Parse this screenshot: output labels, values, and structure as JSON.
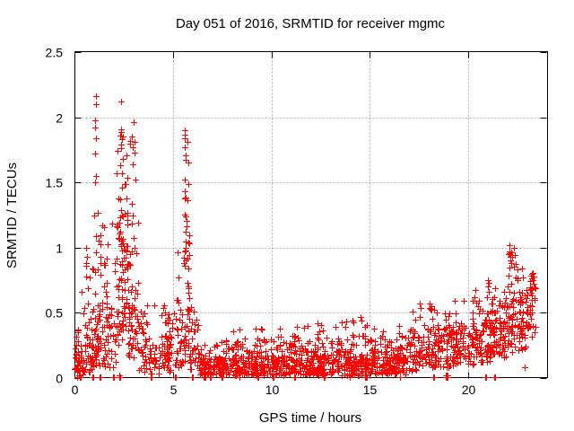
{
  "chart_data": {
    "type": "scatter",
    "title": "Day 051 of 2016, SRMTID for receiver mgmc",
    "xlabel": "GPS time / hours",
    "ylabel": "SRMTID / TECUs",
    "xlim": [
      0,
      24
    ],
    "ylim": [
      0,
      2.5
    ],
    "x_ticks": [
      0,
      5,
      10,
      15,
      20
    ],
    "y_ticks": [
      0,
      0.5,
      1,
      1.5,
      2,
      2.5
    ],
    "grid": true,
    "legend_position": "none",
    "marker": {
      "shape": "plus",
      "color": "#ff0000",
      "size": 7
    },
    "grid_color": "#b0b0b0",
    "axis_color": "#000000",
    "background": "#ffffff",
    "series_name": "SRMTID",
    "seed": 1337,
    "segments": [
      [
        0.0,
        0.45,
        48,
        [
          [
            0.72,
            0.02,
            0.22
          ],
          [
            0.2,
            0.22,
            0.4
          ],
          [
            0.08,
            0.4,
            0.78
          ]
        ]
      ],
      [
        0.45,
        0.95,
        52,
        [
          [
            0.55,
            0.04,
            0.3
          ],
          [
            0.3,
            0.3,
            0.6
          ],
          [
            0.15,
            0.6,
            1.0
          ]
        ]
      ],
      [
        0.95,
        1.25,
        38,
        [
          [
            0.5,
            0.08,
            0.45
          ],
          [
            0.35,
            0.45,
            0.9
          ],
          [
            0.15,
            0.9,
            1.38
          ]
        ]
      ],
      [
        1.25,
        1.65,
        42,
        [
          [
            0.5,
            0.08,
            0.4
          ],
          [
            0.35,
            0.4,
            0.85
          ],
          [
            0.15,
            0.85,
            1.22
          ]
        ]
      ],
      [
        1.65,
        2.1,
        32,
        [
          [
            0.65,
            0.08,
            0.45
          ],
          [
            0.27,
            0.45,
            0.85
          ],
          [
            0.08,
            0.85,
            1.2
          ]
        ]
      ],
      [
        2.1,
        2.7,
        92,
        [
          [
            0.35,
            0.25,
            0.6
          ],
          [
            0.4,
            0.6,
            1.1
          ],
          [
            0.2,
            1.1,
            1.55
          ],
          [
            0.05,
            1.55,
            1.95
          ]
        ]
      ],
      [
        2.7,
        3.25,
        62,
        [
          [
            0.45,
            0.15,
            0.55
          ],
          [
            0.35,
            0.55,
            1.0
          ],
          [
            0.15,
            1.0,
            1.38
          ],
          [
            0.05,
            1.38,
            1.85
          ]
        ]
      ],
      [
        3.25,
        3.8,
        34,
        [
          [
            0.68,
            0.04,
            0.3
          ],
          [
            0.26,
            0.3,
            0.5
          ],
          [
            0.06,
            0.5,
            0.62
          ]
        ]
      ],
      [
        3.8,
        4.5,
        34,
        [
          [
            0.74,
            0.03,
            0.25
          ],
          [
            0.21,
            0.25,
            0.45
          ],
          [
            0.05,
            0.45,
            0.56
          ]
        ]
      ],
      [
        4.5,
        5.2,
        56,
        [
          [
            0.6,
            0.05,
            0.28
          ],
          [
            0.3,
            0.28,
            0.45
          ],
          [
            0.1,
            0.45,
            0.58
          ]
        ]
      ],
      [
        5.2,
        5.55,
        30,
        [
          [
            0.6,
            0.08,
            0.35
          ],
          [
            0.3,
            0.35,
            0.7
          ],
          [
            0.1,
            0.7,
            1.1
          ]
        ]
      ],
      [
        5.55,
        5.85,
        48,
        [
          [
            0.3,
            0.1,
            0.4
          ],
          [
            0.3,
            0.4,
            0.8
          ],
          [
            0.25,
            0.8,
            1.25
          ],
          [
            0.15,
            1.25,
            1.9
          ]
        ]
      ],
      [
        5.85,
        6.35,
        30,
        [
          [
            0.6,
            0.05,
            0.3
          ],
          [
            0.3,
            0.3,
            0.55
          ],
          [
            0.1,
            0.55,
            0.78
          ]
        ]
      ],
      [
        6.35,
        7.0,
        55,
        [
          [
            0.85,
            0.02,
            0.15
          ],
          [
            0.15,
            0.15,
            0.28
          ]
        ]
      ],
      [
        7.0,
        8.0,
        82,
        [
          [
            0.8,
            0.02,
            0.16
          ],
          [
            0.18,
            0.16,
            0.3
          ],
          [
            0.02,
            0.3,
            0.38
          ]
        ]
      ],
      [
        8.0,
        9.0,
        82,
        [
          [
            0.78,
            0.02,
            0.17
          ],
          [
            0.2,
            0.17,
            0.3
          ],
          [
            0.02,
            0.3,
            0.4
          ]
        ]
      ],
      [
        9.0,
        10.0,
        84,
        [
          [
            0.75,
            0.02,
            0.18
          ],
          [
            0.22,
            0.18,
            0.32
          ],
          [
            0.03,
            0.32,
            0.42
          ]
        ]
      ],
      [
        10.0,
        11.0,
        84,
        [
          [
            0.78,
            0.02,
            0.17
          ],
          [
            0.2,
            0.17,
            0.3
          ],
          [
            0.02,
            0.3,
            0.38
          ]
        ]
      ],
      [
        11.0,
        12.0,
        84,
        [
          [
            0.75,
            0.02,
            0.18
          ],
          [
            0.22,
            0.18,
            0.33
          ],
          [
            0.03,
            0.33,
            0.42
          ]
        ]
      ],
      [
        12.0,
        13.0,
        84,
        [
          [
            0.75,
            0.02,
            0.18
          ],
          [
            0.22,
            0.18,
            0.3
          ],
          [
            0.03,
            0.3,
            0.42
          ]
        ]
      ],
      [
        13.0,
        14.0,
        84,
        [
          [
            0.72,
            0.02,
            0.18
          ],
          [
            0.24,
            0.18,
            0.33
          ],
          [
            0.04,
            0.33,
            0.44
          ]
        ]
      ],
      [
        14.0,
        15.0,
        84,
        [
          [
            0.72,
            0.02,
            0.18
          ],
          [
            0.24,
            0.18,
            0.33
          ],
          [
            0.04,
            0.33,
            0.47
          ]
        ]
      ],
      [
        15.0,
        16.0,
        84,
        [
          [
            0.72,
            0.03,
            0.18
          ],
          [
            0.25,
            0.18,
            0.3
          ],
          [
            0.03,
            0.3,
            0.4
          ]
        ]
      ],
      [
        16.0,
        17.0,
        84,
        [
          [
            0.7,
            0.03,
            0.2
          ],
          [
            0.27,
            0.2,
            0.33
          ],
          [
            0.03,
            0.33,
            0.42
          ]
        ]
      ],
      [
        17.0,
        17.6,
        46,
        [
          [
            0.6,
            0.05,
            0.22
          ],
          [
            0.33,
            0.22,
            0.38
          ],
          [
            0.07,
            0.38,
            0.55
          ]
        ]
      ],
      [
        17.6,
        18.3,
        56,
        [
          [
            0.55,
            0.06,
            0.25
          ],
          [
            0.35,
            0.25,
            0.42
          ],
          [
            0.1,
            0.42,
            0.58
          ]
        ]
      ],
      [
        18.3,
        19.3,
        76,
        [
          [
            0.55,
            0.08,
            0.25
          ],
          [
            0.38,
            0.25,
            0.4
          ],
          [
            0.07,
            0.4,
            0.52
          ]
        ]
      ],
      [
        19.3,
        20.3,
        80,
        [
          [
            0.5,
            0.1,
            0.28
          ],
          [
            0.4,
            0.28,
            0.42
          ],
          [
            0.1,
            0.42,
            0.6
          ]
        ]
      ],
      [
        20.3,
        21.2,
        80,
        [
          [
            0.45,
            0.12,
            0.3
          ],
          [
            0.4,
            0.3,
            0.45
          ],
          [
            0.13,
            0.45,
            0.62
          ],
          [
            0.02,
            0.62,
            0.76
          ]
        ]
      ],
      [
        21.2,
        22.0,
        76,
        [
          [
            0.4,
            0.15,
            0.32
          ],
          [
            0.42,
            0.32,
            0.48
          ],
          [
            0.15,
            0.48,
            0.62
          ],
          [
            0.03,
            0.62,
            0.72
          ]
        ]
      ],
      [
        22.0,
        22.55,
        56,
        [
          [
            0.3,
            0.2,
            0.4
          ],
          [
            0.35,
            0.4,
            0.6
          ],
          [
            0.2,
            0.6,
            0.85
          ],
          [
            0.15,
            0.85,
            1.03
          ]
        ]
      ],
      [
        22.55,
        23.1,
        50,
        [
          [
            0.42,
            0.2,
            0.38
          ],
          [
            0.4,
            0.38,
            0.55
          ],
          [
            0.18,
            0.55,
            0.68
          ]
        ]
      ],
      [
        23.1,
        23.45,
        26,
        [
          [
            0.3,
            0.3,
            0.5
          ],
          [
            0.45,
            0.5,
            0.68
          ],
          [
            0.25,
            0.68,
            0.81
          ]
        ]
      ]
    ],
    "outliers": [
      [
        1.07,
        2.16
      ],
      [
        1.09,
        2.1
      ],
      [
        1.06,
        1.98
      ],
      [
        1.08,
        1.92
      ],
      [
        1.07,
        1.84
      ],
      [
        1.05,
        1.72
      ],
      [
        1.08,
        1.55
      ],
      [
        1.06,
        1.5
      ],
      [
        2.38,
        2.12
      ],
      [
        2.33,
        1.91
      ],
      [
        2.36,
        1.86
      ],
      [
        2.41,
        1.83
      ],
      [
        2.34,
        1.79
      ],
      [
        2.39,
        1.76
      ],
      [
        2.46,
        1.68
      ],
      [
        2.35,
        1.63
      ],
      [
        2.42,
        1.57
      ],
      [
        2.99,
        1.96
      ],
      [
        2.93,
        1.85
      ],
      [
        3.05,
        1.81
      ],
      [
        2.96,
        1.77
      ],
      [
        3.07,
        1.73
      ],
      [
        2.97,
        1.64
      ],
      [
        3.12,
        1.52
      ],
      [
        5.6,
        1.9
      ],
      [
        5.62,
        1.84
      ],
      [
        5.61,
        1.77
      ],
      [
        5.63,
        1.71
      ],
      [
        5.58,
        1.52
      ],
      [
        5.6,
        1.43
      ],
      [
        5.65,
        1.12
      ],
      [
        5.63,
        1.05
      ],
      [
        5.66,
        1.0
      ],
      [
        5.62,
        0.97
      ],
      [
        0.62,
        1.0
      ],
      [
        0.64,
        0.93
      ],
      [
        0.6,
        0.86
      ],
      [
        12.32,
        0.42
      ],
      [
        14.52,
        0.47
      ],
      [
        14.55,
        0.44
      ],
      [
        15.66,
        0.36
      ],
      [
        17.52,
        0.57
      ],
      [
        17.55,
        0.54
      ],
      [
        18.05,
        0.57
      ],
      [
        18.08,
        0.53
      ],
      [
        20.35,
        0.62
      ],
      [
        20.4,
        0.58
      ],
      [
        21.0,
        0.75
      ],
      [
        21.02,
        0.7
      ],
      [
        21.04,
        0.66
      ],
      [
        20.98,
        0.62
      ],
      [
        22.12,
        1.02
      ],
      [
        22.1,
        0.96
      ],
      [
        22.15,
        0.93
      ],
      [
        22.13,
        0.9
      ],
      [
        22.17,
        0.88
      ],
      [
        22.11,
        0.85
      ],
      [
        22.72,
        0.84
      ],
      [
        22.76,
        0.77
      ],
      [
        22.86,
        0.08
      ],
      [
        23.25,
        0.8
      ],
      [
        23.3,
        0.78
      ],
      [
        23.28,
        0.75
      ],
      [
        23.35,
        0.72
      ],
      [
        23.22,
        0.68
      ]
    ],
    "zero_clusters": [
      [
        0.15,
        2
      ],
      [
        0.3,
        2
      ],
      [
        0.95,
        2
      ],
      [
        1.3,
        2
      ],
      [
        2.0,
        2
      ],
      [
        2.3,
        4
      ],
      [
        3.9,
        2
      ],
      [
        5.15,
        2
      ],
      [
        6.0,
        3
      ],
      [
        6.6,
        3
      ],
      [
        6.9,
        2
      ],
      [
        7.5,
        2
      ],
      [
        8.4,
        2
      ],
      [
        9.3,
        3
      ],
      [
        10.1,
        2
      ],
      [
        11.2,
        2
      ],
      [
        12.68,
        5
      ],
      [
        14.0,
        2
      ],
      [
        14.8,
        5
      ],
      [
        16.55,
        2
      ],
      [
        18.25,
        3
      ],
      [
        18.9,
        6
      ],
      [
        20.9,
        2
      ],
      [
        21.35,
        2
      ]
    ]
  }
}
